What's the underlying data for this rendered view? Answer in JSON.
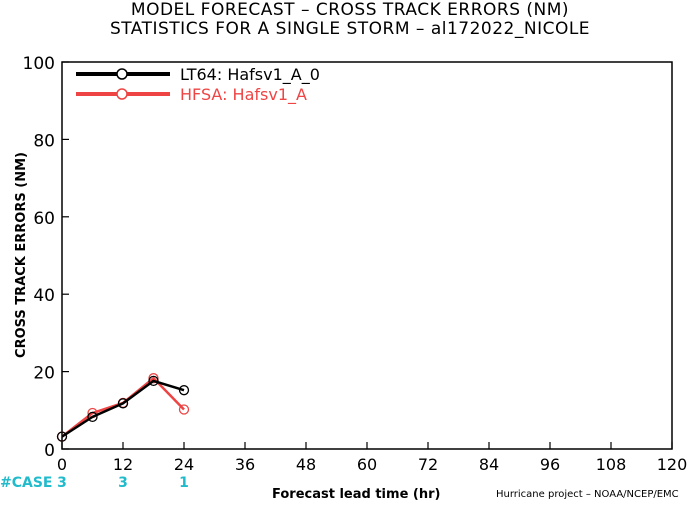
{
  "chart_data": {
    "type": "line",
    "title": "MODEL FORECAST – CROSS TRACK ERRORS (NM)",
    "subtitle": "STATISTICS FOR A SINGLE STORM – al172022_NICOLE",
    "xlabel": "Forecast lead time (hr)",
    "ylabel": "CROSS TRACK ERRORS (NM)",
    "xlim": [
      0,
      120
    ],
    "ylim": [
      0,
      100
    ],
    "xticks": [
      "0",
      "12",
      "24",
      "36",
      "48",
      "60",
      "72",
      "84",
      "96",
      "108",
      "120"
    ],
    "yticks": [
      "0",
      "20",
      "40",
      "60",
      "80",
      "100"
    ],
    "legend_position": "top-left",
    "grid": false,
    "series": [
      {
        "name": "LT64: Hafsv1_A_0",
        "color": "#000000",
        "x": [
          0,
          6,
          12,
          18,
          24
        ],
        "y": [
          3.2,
          8.3,
          11.8,
          17.6,
          15.2
        ]
      },
      {
        "name": "HFSA: Hafsv1_A",
        "color": "#ee4444",
        "x": [
          0,
          6,
          12,
          18,
          24
        ],
        "y": [
          3.2,
          9.3,
          11.9,
          18.3,
          10.2
        ]
      }
    ],
    "case_label": "#CASE",
    "case_counts": [
      {
        "x": 0,
        "n": "3"
      },
      {
        "x": 12,
        "n": "3"
      },
      {
        "x": 24,
        "n": "1"
      }
    ],
    "case_color": "#22bbcc"
  },
  "credit": "Hurricane project – NOAA/NCEP/EMC"
}
